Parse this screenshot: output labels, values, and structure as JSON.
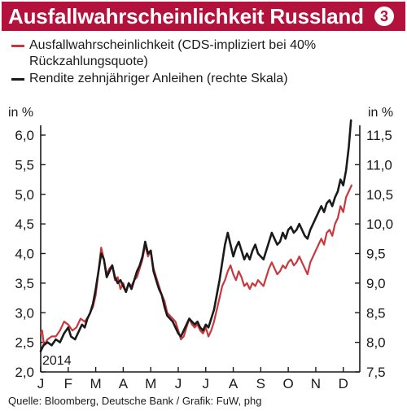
{
  "header": {
    "title": "Ausfallwahrscheinlichkeit Russland",
    "badge": "3"
  },
  "colors": {
    "brand": "#b3123c",
    "series_default": "#c8383d",
    "series_yield": "#1a1a1a"
  },
  "footer": {
    "source": "Quelle: Bloomberg, Deutsche Bank / Grafik: FuW, phg"
  },
  "chart_data": {
    "type": "line",
    "left_axis": {
      "unit": "in %",
      "min": 2.0,
      "max": 6.0,
      "ticks": [
        "2,0",
        "2,5",
        "3,0",
        "3,5",
        "4,0",
        "4,5",
        "5,0",
        "5,5",
        "6,0"
      ]
    },
    "right_axis": {
      "unit": "in %",
      "min": 7.5,
      "max": 11.5,
      "ticks": [
        "7,5",
        "8,0",
        "8,5",
        "9,0",
        "9,5",
        "10,0",
        "10,5",
        "11,0",
        "11,5"
      ]
    },
    "x_axis": {
      "labels": [
        "J",
        "F",
        "M",
        "A",
        "M",
        "J",
        "J",
        "A",
        "S",
        "O",
        "N",
        "D"
      ],
      "year_label": "2014",
      "domain": [
        0,
        11.6
      ]
    },
    "grid": false,
    "legend_position": "top",
    "series": [
      {
        "name": "Ausfallwahrscheinlichkeit (CDS-impliziert bei 40% Rückzahlungsquote)",
        "axis": "left",
        "color": "#c8383d",
        "points": [
          [
            0.0,
            2.65
          ],
          [
            0.05,
            2.7
          ],
          [
            0.12,
            2.45
          ],
          [
            0.25,
            2.55
          ],
          [
            0.4,
            2.6
          ],
          [
            0.55,
            2.6
          ],
          [
            0.7,
            2.7
          ],
          [
            0.85,
            2.85
          ],
          [
            1.0,
            2.8
          ],
          [
            1.15,
            2.7
          ],
          [
            1.3,
            2.75
          ],
          [
            1.45,
            2.9
          ],
          [
            1.6,
            2.85
          ],
          [
            1.75,
            2.95
          ],
          [
            1.9,
            3.1
          ],
          [
            2.0,
            3.3
          ],
          [
            2.1,
            3.7
          ],
          [
            2.2,
            4.1
          ],
          [
            2.3,
            3.9
          ],
          [
            2.4,
            3.65
          ],
          [
            2.5,
            3.75
          ],
          [
            2.6,
            3.8
          ],
          [
            2.7,
            3.55
          ],
          [
            2.8,
            3.6
          ],
          [
            2.9,
            3.4
          ],
          [
            3.0,
            3.5
          ],
          [
            3.1,
            3.35
          ],
          [
            3.2,
            3.5
          ],
          [
            3.3,
            3.45
          ],
          [
            3.4,
            3.55
          ],
          [
            3.5,
            3.6
          ],
          [
            3.6,
            3.75
          ],
          [
            3.7,
            3.9
          ],
          [
            3.8,
            4.15
          ],
          [
            3.9,
            3.95
          ],
          [
            4.0,
            4.05
          ],
          [
            4.1,
            3.75
          ],
          [
            4.2,
            3.6
          ],
          [
            4.3,
            3.45
          ],
          [
            4.4,
            3.3
          ],
          [
            4.5,
            3.2
          ],
          [
            4.6,
            3.0
          ],
          [
            4.7,
            2.95
          ],
          [
            4.8,
            2.9
          ],
          [
            4.9,
            2.85
          ],
          [
            5.0,
            2.7
          ],
          [
            5.1,
            2.55
          ],
          [
            5.2,
            2.6
          ],
          [
            5.3,
            2.75
          ],
          [
            5.4,
            2.9
          ],
          [
            5.5,
            2.8
          ],
          [
            5.6,
            2.75
          ],
          [
            5.7,
            2.8
          ],
          [
            5.8,
            2.7
          ],
          [
            5.9,
            2.65
          ],
          [
            6.0,
            2.75
          ],
          [
            6.1,
            2.6
          ],
          [
            6.2,
            2.7
          ],
          [
            6.3,
            2.85
          ],
          [
            6.4,
            3.05
          ],
          [
            6.5,
            3.25
          ],
          [
            6.6,
            3.45
          ],
          [
            6.7,
            3.55
          ],
          [
            6.8,
            3.7
          ],
          [
            6.9,
            3.8
          ],
          [
            7.0,
            3.65
          ],
          [
            7.1,
            3.55
          ],
          [
            7.2,
            3.7
          ],
          [
            7.3,
            3.6
          ],
          [
            7.4,
            3.45
          ],
          [
            7.5,
            3.5
          ],
          [
            7.6,
            3.4
          ],
          [
            7.7,
            3.5
          ],
          [
            7.8,
            3.45
          ],
          [
            7.9,
            3.55
          ],
          [
            8.0,
            3.5
          ],
          [
            8.1,
            3.45
          ],
          [
            8.2,
            3.6
          ],
          [
            8.3,
            3.75
          ],
          [
            8.4,
            3.85
          ],
          [
            8.5,
            3.75
          ],
          [
            8.6,
            3.65
          ],
          [
            8.7,
            3.7
          ],
          [
            8.8,
            3.8
          ],
          [
            8.9,
            3.75
          ],
          [
            9.0,
            3.85
          ],
          [
            9.1,
            3.9
          ],
          [
            9.2,
            3.8
          ],
          [
            9.3,
            3.85
          ],
          [
            9.4,
            3.95
          ],
          [
            9.5,
            3.85
          ],
          [
            9.6,
            3.75
          ],
          [
            9.7,
            3.65
          ],
          [
            9.8,
            3.85
          ],
          [
            9.9,
            3.95
          ],
          [
            10.0,
            4.05
          ],
          [
            10.1,
            4.15
          ],
          [
            10.2,
            4.25
          ],
          [
            10.3,
            4.15
          ],
          [
            10.4,
            4.35
          ],
          [
            10.5,
            4.4
          ],
          [
            10.6,
            4.3
          ],
          [
            10.7,
            4.5
          ],
          [
            10.8,
            4.6
          ],
          [
            10.9,
            4.8
          ],
          [
            11.0,
            4.7
          ],
          [
            11.1,
            4.95
          ],
          [
            11.2,
            5.05
          ],
          [
            11.3,
            5.15
          ]
        ]
      },
      {
        "name": "Rendite zehnjähriger Anleihen (rechte Skala)",
        "axis": "right",
        "color": "#1a1a1a",
        "points": [
          [
            0.0,
            7.85
          ],
          [
            0.1,
            7.95
          ],
          [
            0.25,
            8.0
          ],
          [
            0.4,
            7.95
          ],
          [
            0.55,
            8.05
          ],
          [
            0.7,
            8.0
          ],
          [
            0.85,
            8.15
          ],
          [
            1.0,
            8.25
          ],
          [
            1.1,
            8.1
          ],
          [
            1.25,
            8.05
          ],
          [
            1.4,
            8.2
          ],
          [
            1.5,
            8.3
          ],
          [
            1.6,
            8.25
          ],
          [
            1.7,
            8.4
          ],
          [
            1.8,
            8.5
          ],
          [
            1.9,
            8.65
          ],
          [
            2.0,
            8.9
          ],
          [
            2.1,
            9.2
          ],
          [
            2.2,
            9.5
          ],
          [
            2.3,
            9.4
          ],
          [
            2.4,
            9.1
          ],
          [
            2.5,
            9.2
          ],
          [
            2.6,
            9.3
          ],
          [
            2.7,
            9.1
          ],
          [
            2.8,
            9.0
          ],
          [
            2.9,
            9.05
          ],
          [
            3.0,
            8.95
          ],
          [
            3.1,
            8.85
          ],
          [
            3.2,
            9.0
          ],
          [
            3.3,
            8.9
          ],
          [
            3.4,
            9.05
          ],
          [
            3.5,
            9.2
          ],
          [
            3.6,
            9.3
          ],
          [
            3.7,
            9.45
          ],
          [
            3.8,
            9.7
          ],
          [
            3.9,
            9.5
          ],
          [
            4.0,
            9.55
          ],
          [
            4.1,
            9.2
          ],
          [
            4.2,
            9.05
          ],
          [
            4.3,
            8.9
          ],
          [
            4.4,
            8.8
          ],
          [
            4.5,
            8.6
          ],
          [
            4.6,
            8.45
          ],
          [
            4.7,
            8.4
          ],
          [
            4.8,
            8.35
          ],
          [
            4.9,
            8.25
          ],
          [
            5.0,
            8.15
          ],
          [
            5.1,
            8.1
          ],
          [
            5.2,
            8.2
          ],
          [
            5.3,
            8.3
          ],
          [
            5.4,
            8.4
          ],
          [
            5.5,
            8.35
          ],
          [
            5.6,
            8.3
          ],
          [
            5.7,
            8.35
          ],
          [
            5.8,
            8.25
          ],
          [
            5.9,
            8.2
          ],
          [
            6.0,
            8.3
          ],
          [
            6.1,
            8.25
          ],
          [
            6.2,
            8.4
          ],
          [
            6.3,
            8.55
          ],
          [
            6.4,
            8.8
          ],
          [
            6.5,
            9.05
          ],
          [
            6.6,
            9.35
          ],
          [
            6.7,
            9.65
          ],
          [
            6.8,
            9.85
          ],
          [
            6.9,
            9.65
          ],
          [
            7.0,
            9.45
          ],
          [
            7.1,
            9.6
          ],
          [
            7.2,
            9.7
          ],
          [
            7.3,
            9.55
          ],
          [
            7.4,
            9.4
          ],
          [
            7.5,
            9.5
          ],
          [
            7.6,
            9.4
          ],
          [
            7.7,
            9.55
          ],
          [
            7.8,
            9.65
          ],
          [
            7.9,
            9.5
          ],
          [
            8.0,
            9.45
          ],
          [
            8.1,
            9.4
          ],
          [
            8.2,
            9.55
          ],
          [
            8.3,
            9.7
          ],
          [
            8.4,
            9.85
          ],
          [
            8.5,
            9.75
          ],
          [
            8.6,
            9.65
          ],
          [
            8.7,
            9.7
          ],
          [
            8.8,
            9.85
          ],
          [
            8.9,
            9.75
          ],
          [
            9.0,
            9.9
          ],
          [
            9.1,
            9.95
          ],
          [
            9.2,
            9.85
          ],
          [
            9.3,
            9.9
          ],
          [
            9.4,
            10.0
          ],
          [
            9.5,
            9.9
          ],
          [
            9.6,
            9.8
          ],
          [
            9.7,
            9.75
          ],
          [
            9.8,
            9.9
          ],
          [
            9.9,
            10.0
          ],
          [
            10.0,
            10.1
          ],
          [
            10.1,
            10.2
          ],
          [
            10.2,
            10.3
          ],
          [
            10.3,
            10.2
          ],
          [
            10.4,
            10.35
          ],
          [
            10.5,
            10.4
          ],
          [
            10.6,
            10.3
          ],
          [
            10.7,
            10.45
          ],
          [
            10.8,
            10.55
          ],
          [
            10.9,
            10.75
          ],
          [
            11.0,
            10.65
          ],
          [
            11.1,
            10.9
          ],
          [
            11.2,
            11.3
          ],
          [
            11.28,
            11.75
          ]
        ]
      }
    ]
  }
}
